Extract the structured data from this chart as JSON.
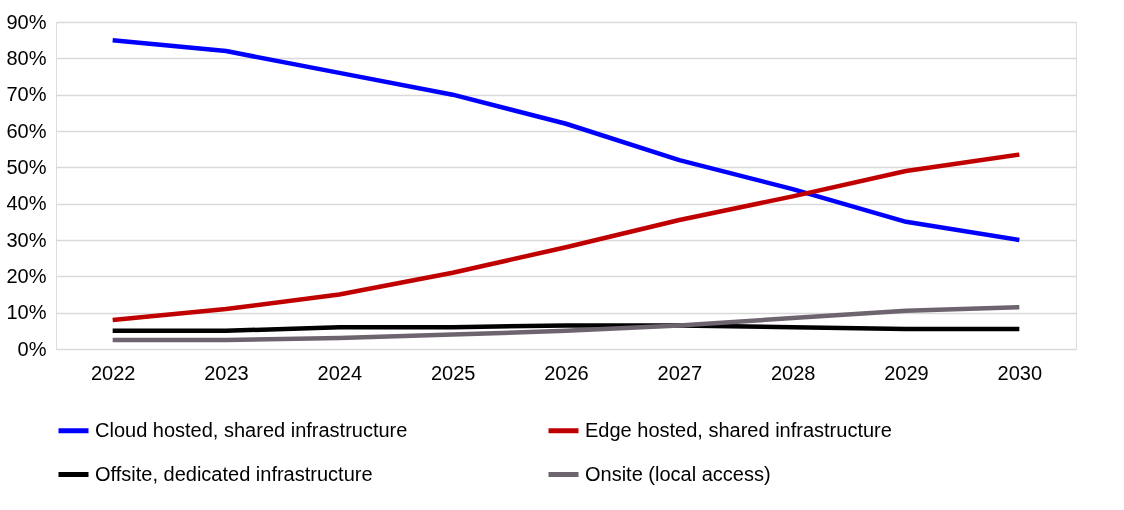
{
  "chart_data": {
    "type": "line",
    "categories": [
      "2022",
      "2023",
      "2024",
      "2025",
      "2026",
      "2027",
      "2028",
      "2029",
      "2030"
    ],
    "series": [
      {
        "name": "Cloud hosted, shared infrastructure",
        "color": "#0000ff",
        "values": [
          85,
          82,
          76,
          70,
          62,
          52,
          44,
          35,
          30
        ]
      },
      {
        "name": "Edge hosted, shared infrastructure",
        "color": "#c00000",
        "values": [
          8,
          11,
          15,
          21,
          28,
          35.5,
          42,
          49,
          53.5
        ]
      },
      {
        "name": "Offsite, dedicated infrastructure",
        "color": "#000000",
        "values": [
          5,
          5,
          6,
          6,
          6.5,
          6.5,
          6,
          5.5,
          5.5
        ]
      },
      {
        "name": "Onsite (local access)",
        "color": "#6e6470",
        "values": [
          2.5,
          2.5,
          3,
          4,
          5,
          6.5,
          8.5,
          10.5,
          11.5
        ]
      }
    ],
    "ylim": [
      0,
      90
    ],
    "yticks": [
      {
        "value": 0,
        "label": "0%"
      },
      {
        "value": 10,
        "label": "10%"
      },
      {
        "value": 20,
        "label": "20%"
      },
      {
        "value": 30,
        "label": "30%"
      },
      {
        "value": 40,
        "label": "40%"
      },
      {
        "value": 50,
        "label": "50%"
      },
      {
        "value": 60,
        "label": "60%"
      },
      {
        "value": 70,
        "label": "70%"
      },
      {
        "value": 80,
        "label": "80%"
      },
      {
        "value": 90,
        "label": "90%"
      }
    ],
    "grid": "y",
    "legend": "bottom",
    "marker": "none",
    "line_style": "solid"
  }
}
